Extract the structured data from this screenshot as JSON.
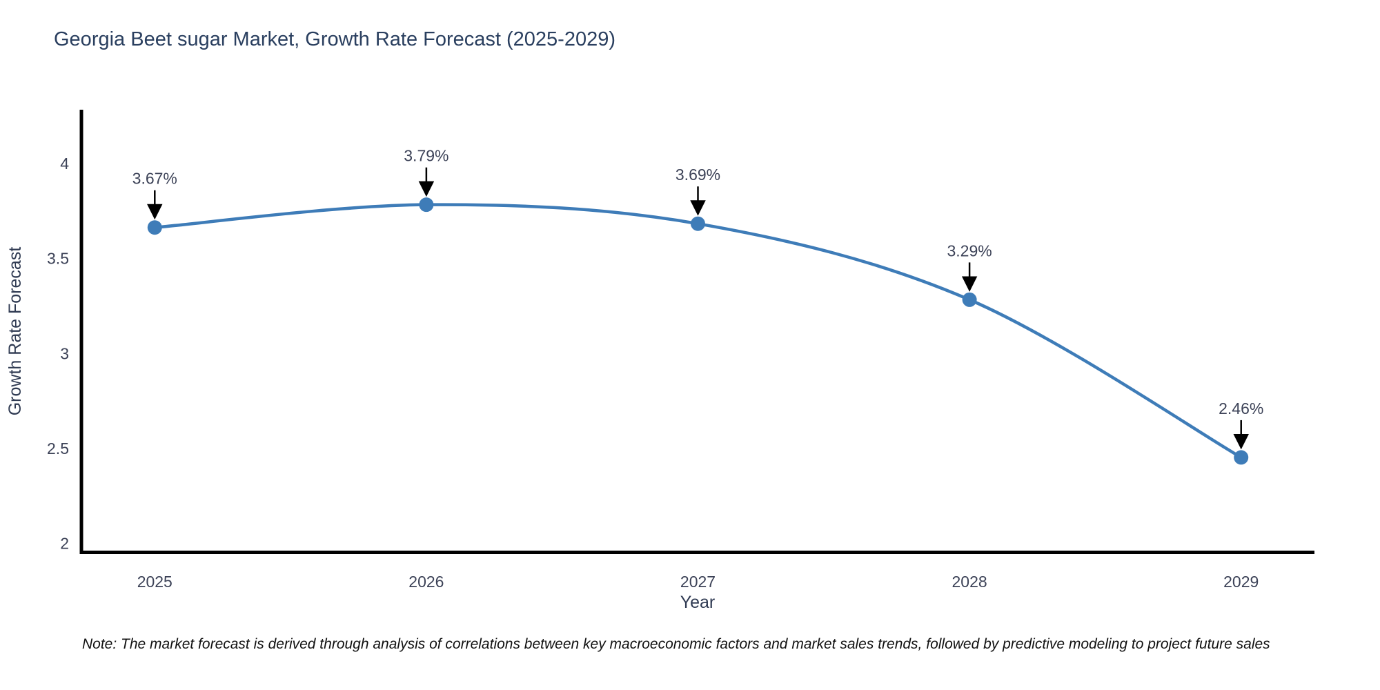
{
  "title": "Georgia Beet sugar Market, Growth Rate Forecast (2025-2029)",
  "note": "Note: The market forecast is derived through analysis of correlations between key macroeconomic factors and market sales trends, followed by predictive modeling to project future sales",
  "colors": {
    "line": "#3e7cb8",
    "marker": "#3e7cb8",
    "axis": "#000000",
    "arrow": "#000000",
    "title_text": "#2a3f5f",
    "tick_text": "#3c4257",
    "background": "#ffffff"
  },
  "chart_data": {
    "type": "line",
    "line_shape": "spline",
    "markers": true,
    "grid": false,
    "legend": "none",
    "title": "Georgia Beet sugar Market, Growth Rate Forecast (2025-2029)",
    "xlabel": "Year",
    "ylabel": "Growth Rate Forecast",
    "x": [
      2025,
      2026,
      2027,
      2028,
      2029
    ],
    "y": [
      3.67,
      3.79,
      3.69,
      3.29,
      2.46
    ],
    "point_labels": [
      "3.67%",
      "3.79%",
      "3.69%",
      "3.29%",
      "2.46%"
    ],
    "x_tick_labels": [
      "2025",
      "2026",
      "2027",
      "2028",
      "2029"
    ],
    "y_tick_values": [
      4,
      3.5,
      3,
      2.5,
      2
    ],
    "y_tick_labels": [
      "4",
      "3.5",
      "3",
      "2.5",
      "2"
    ],
    "xlim": [
      2024.73,
      2029.27
    ],
    "ylim": [
      1.955,
      4.29
    ]
  }
}
